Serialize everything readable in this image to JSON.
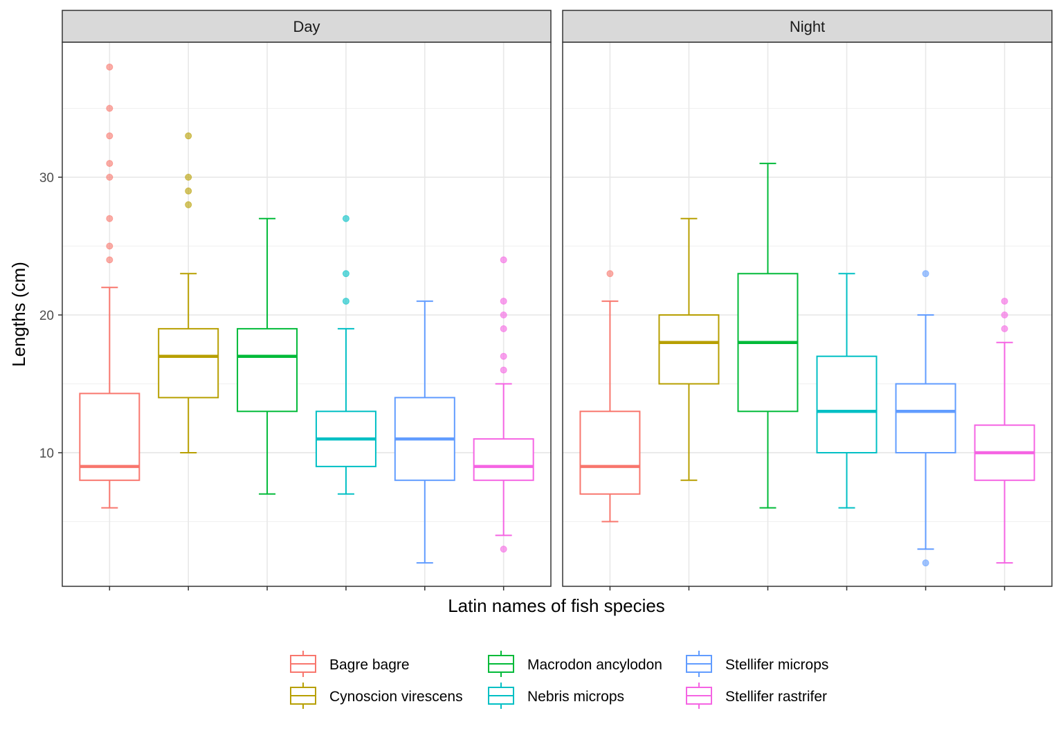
{
  "chart_data": {
    "type": "boxplot",
    "xlabel": "Latin names of fish species",
    "ylabel": "Lengths (cm)",
    "ylim": [
      0.3,
      39.8
    ],
    "yticks": [
      10,
      20,
      30
    ],
    "grid": true,
    "legend_position": "bottom",
    "categories": [
      "Bagre bagre",
      "Cynoscion virescens",
      "Macrodon ancylodon",
      "Nebris microps",
      "Stellifer microps",
      "Stellifer rastrifer"
    ],
    "colors": [
      "#F8766D",
      "#B79F00",
      "#00BA38",
      "#00BFC4",
      "#619CFF",
      "#F564E3"
    ],
    "panels": [
      {
        "label": "Day",
        "boxes": [
          {
            "species": "Bagre bagre",
            "lower_whisker": 6,
            "q1": 8,
            "median": 9,
            "q3": 14.3,
            "upper_whisker": 22,
            "outliers": [
              24,
              25,
              27,
              30,
              31,
              33,
              35,
              38
            ]
          },
          {
            "species": "Cynoscion virescens",
            "lower_whisker": 10,
            "q1": 14,
            "median": 17,
            "q3": 19,
            "upper_whisker": 23,
            "outliers": [
              28,
              29,
              30,
              33
            ]
          },
          {
            "species": "Macrodon ancylodon",
            "lower_whisker": 7,
            "q1": 13,
            "median": 17,
            "q3": 19,
            "upper_whisker": 27,
            "outliers": []
          },
          {
            "species": "Nebris microps",
            "lower_whisker": 7,
            "q1": 9,
            "median": 11,
            "q3": 13,
            "upper_whisker": 19,
            "outliers": [
              21,
              23,
              27
            ]
          },
          {
            "species": "Stellifer microps",
            "lower_whisker": 2,
            "q1": 8,
            "median": 11,
            "q3": 14,
            "upper_whisker": 21,
            "outliers": []
          },
          {
            "species": "Stellifer rastrifer",
            "lower_whisker": 4,
            "q1": 8,
            "median": 9,
            "q3": 11,
            "upper_whisker": 15,
            "outliers": [
              3,
              16,
              17,
              19,
              20,
              21,
              24
            ]
          }
        ]
      },
      {
        "label": "Night",
        "boxes": [
          {
            "species": "Bagre bagre",
            "lower_whisker": 5,
            "q1": 7,
            "median": 9,
            "q3": 13,
            "upper_whisker": 21,
            "outliers": [
              23
            ]
          },
          {
            "species": "Cynoscion virescens",
            "lower_whisker": 8,
            "q1": 15,
            "median": 18,
            "q3": 20,
            "upper_whisker": 27,
            "outliers": []
          },
          {
            "species": "Macrodon ancylodon",
            "lower_whisker": 6,
            "q1": 13,
            "median": 18,
            "q3": 23,
            "upper_whisker": 31,
            "outliers": []
          },
          {
            "species": "Nebris microps",
            "lower_whisker": 6,
            "q1": 10,
            "median": 13,
            "q3": 17,
            "upper_whisker": 23,
            "outliers": []
          },
          {
            "species": "Stellifer microps",
            "lower_whisker": 3,
            "q1": 10,
            "median": 13,
            "q3": 15,
            "upper_whisker": 20,
            "outliers": [
              2,
              23
            ]
          },
          {
            "species": "Stellifer rastrifer",
            "lower_whisker": 2,
            "q1": 8,
            "median": 10,
            "q3": 12,
            "upper_whisker": 18,
            "outliers": [
              19,
              20,
              21
            ]
          }
        ]
      }
    ]
  }
}
